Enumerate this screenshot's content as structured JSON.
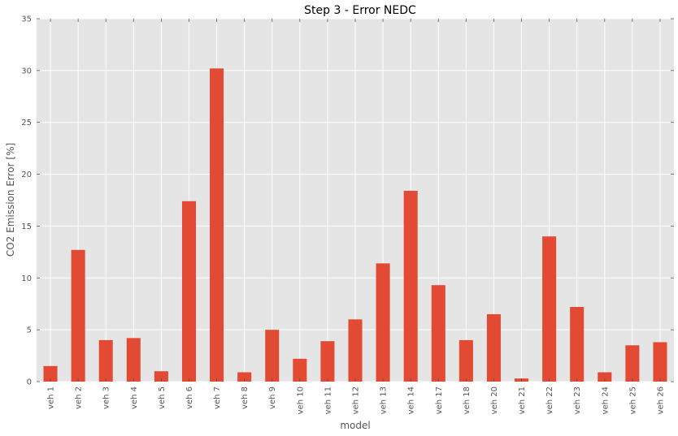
{
  "chart_data": {
    "type": "bar",
    "title": "Step 3 - Error NEDC",
    "xlabel": "model",
    "ylabel": "CO2 Emission Error [%]",
    "ylim": [
      0,
      35
    ],
    "yticks": [
      0,
      5,
      10,
      15,
      20,
      25,
      30,
      35
    ],
    "grid": true,
    "categories": [
      "veh 1",
      "veh 2",
      "veh 3",
      "veh 4",
      "veh 5",
      "veh 6",
      "veh 7",
      "veh 8",
      "veh 9",
      "veh 10",
      "veh 11",
      "veh 12",
      "veh 13",
      "veh 14",
      "veh 17",
      "veh 18",
      "veh 20",
      "veh 21",
      "veh 22",
      "veh 23",
      "veh 24",
      "veh 25",
      "veh 26"
    ],
    "values": [
      1.5,
      12.7,
      4.0,
      4.2,
      1.0,
      17.4,
      30.2,
      0.9,
      5.0,
      2.2,
      3.9,
      6.0,
      11.4,
      18.4,
      9.3,
      4.0,
      6.5,
      0.3,
      14.0,
      7.2,
      0.9,
      3.5,
      3.8
    ],
    "colors": {
      "bar": "#e24a33",
      "background": "#e5e5e5",
      "grid": "#ffffff",
      "tick": "#555555"
    }
  }
}
